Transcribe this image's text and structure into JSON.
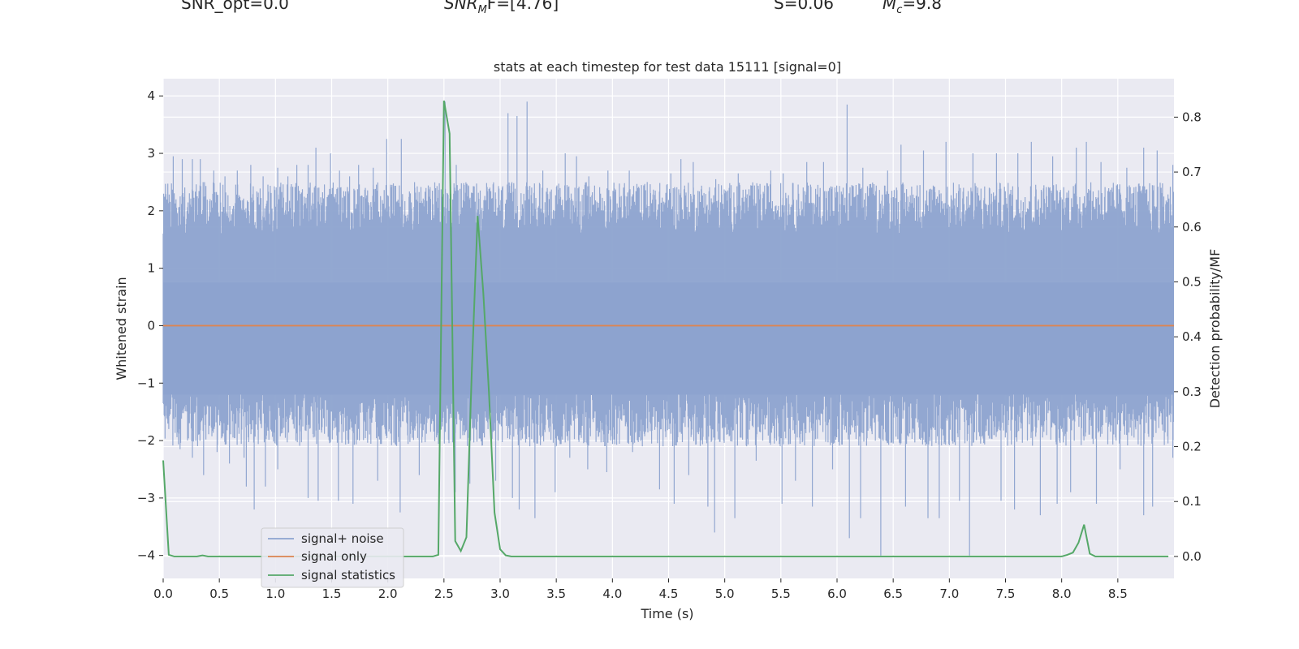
{
  "header": {
    "snr_opt": "SNR_opt=0.0",
    "snr_mf_base": "SNR",
    "snr_mf_sub": "M",
    "snr_mf_rest": "F=[4.76]",
    "s_stat": "S=0.06",
    "mc_base": "M",
    "mc_sub": "c",
    "mc_rest": "=9.8"
  },
  "chart_data": {
    "type": "line",
    "title": "stats at each timestep for test data 15111 [signal=0]",
    "xlabel": "Time (s)",
    "ylabel": "Whitened strain",
    "ylabel_right": "Detection probability/MF",
    "xlim": [
      0,
      9
    ],
    "ylim": [
      -4.4,
      4.3
    ],
    "ylim_right": [
      -0.04,
      0.87
    ],
    "xticks": [
      0.0,
      0.5,
      1.0,
      1.5,
      2.0,
      2.5,
      3.0,
      3.5,
      4.0,
      4.5,
      5.0,
      5.5,
      6.0,
      6.5,
      7.0,
      7.5,
      8.0,
      8.5
    ],
    "xtick_labels": [
      "0.0",
      "0.5",
      "1.0",
      "1.5",
      "2.0",
      "2.5",
      "3.0",
      "3.5",
      "4.0",
      "4.5",
      "5.0",
      "5.5",
      "6.0",
      "6.5",
      "7.0",
      "7.5",
      "8.0",
      "8.5"
    ],
    "yticks": [
      4,
      3,
      2,
      1,
      0,
      -1,
      -2,
      -3,
      -4
    ],
    "ytick_labels": [
      "4",
      "3",
      "2",
      "1",
      "0",
      "−1",
      "−2",
      "−3",
      "−4"
    ],
    "yticks_right": [
      0.8,
      0.7,
      0.6,
      0.5,
      0.4,
      0.3,
      0.2,
      0.1,
      0.0
    ],
    "ytick_labels_right": [
      "0.8",
      "0.7",
      "0.6",
      "0.5",
      "0.4",
      "0.3",
      "0.2",
      "0.1",
      "0.0"
    ],
    "grid": true,
    "legend_position": "lower-left",
    "colors": {
      "noise": "#8da3cf",
      "signal_only": "#dd8452",
      "statistics": "#55a868",
      "plot_bg": "#eaeaf2",
      "grid": "#ffffff",
      "text": "#262626"
    },
    "series": [
      {
        "name": "signal+ noise",
        "axis": "left",
        "style": "dense noise",
        "envelope_peaks_upper": [
          [
            0.09,
            2.95
          ],
          [
            0.17,
            2.9
          ],
          [
            0.26,
            2.9
          ],
          [
            0.33,
            2.9
          ],
          [
            0.45,
            2.7
          ],
          [
            0.55,
            2.6
          ],
          [
            0.66,
            2.7
          ],
          [
            0.78,
            2.8
          ],
          [
            0.89,
            2.6
          ],
          [
            1.02,
            2.75
          ],
          [
            1.11,
            2.6
          ],
          [
            1.19,
            2.8
          ],
          [
            1.29,
            2.8
          ],
          [
            1.36,
            3.1
          ],
          [
            1.49,
            3.0
          ],
          [
            1.57,
            2.7
          ],
          [
            1.66,
            2.6
          ],
          [
            1.74,
            2.8
          ],
          [
            1.87,
            2.75
          ],
          [
            1.99,
            3.25
          ],
          [
            2.12,
            3.25
          ],
          [
            2.24,
            2.4
          ],
          [
            2.51,
            3.9
          ],
          [
            2.61,
            2.8
          ],
          [
            3.07,
            3.7
          ],
          [
            3.15,
            3.65
          ],
          [
            3.24,
            3.9
          ],
          [
            3.38,
            2.7
          ],
          [
            3.58,
            3.0
          ],
          [
            3.68,
            2.95
          ],
          [
            3.79,
            2.6
          ],
          [
            3.96,
            2.7
          ],
          [
            4.15,
            2.7
          ],
          [
            4.31,
            2.5
          ],
          [
            4.52,
            2.65
          ],
          [
            4.61,
            2.9
          ],
          [
            4.72,
            2.85
          ],
          [
            4.92,
            2.55
          ],
          [
            5.12,
            2.65
          ],
          [
            5.41,
            2.7
          ],
          [
            5.52,
            2.65
          ],
          [
            5.73,
            2.85
          ],
          [
            5.88,
            2.85
          ],
          [
            6.09,
            3.85
          ],
          [
            6.23,
            2.75
          ],
          [
            6.45,
            2.7
          ],
          [
            6.57,
            3.15
          ],
          [
            6.77,
            3.05
          ],
          [
            6.97,
            3.2
          ],
          [
            7.21,
            3.0
          ],
          [
            7.42,
            3.0
          ],
          [
            7.61,
            3.0
          ],
          [
            7.73,
            3.2
          ],
          [
            7.92,
            2.95
          ],
          [
            8.13,
            3.1
          ],
          [
            8.22,
            3.2
          ],
          [
            8.35,
            2.85
          ],
          [
            8.58,
            2.75
          ],
          [
            8.73,
            3.1
          ],
          [
            8.85,
            3.05
          ],
          [
            8.99,
            2.8
          ]
        ],
        "envelope_peaks_lower": [
          [
            0.05,
            -1.8
          ],
          [
            0.15,
            -2.15
          ],
          [
            0.26,
            -2.3
          ],
          [
            0.36,
            -2.6
          ],
          [
            0.48,
            -2.2
          ],
          [
            0.59,
            -2.4
          ],
          [
            0.72,
            -2.3
          ],
          [
            0.74,
            -2.8
          ],
          [
            0.81,
            -3.2
          ],
          [
            0.91,
            -2.8
          ],
          [
            1.02,
            -2.5
          ],
          [
            1.29,
            -3.0
          ],
          [
            1.38,
            -3.05
          ],
          [
            1.56,
            -3.05
          ],
          [
            1.69,
            -3.1
          ],
          [
            1.91,
            -2.7
          ],
          [
            2.11,
            -3.25
          ],
          [
            2.28,
            -2.6
          ],
          [
            2.6,
            -2.9
          ],
          [
            2.73,
            -2.75
          ],
          [
            2.96,
            -2.7
          ],
          [
            3.11,
            -3.0
          ],
          [
            3.17,
            -3.2
          ],
          [
            3.31,
            -3.35
          ],
          [
            3.49,
            -2.9
          ],
          [
            3.62,
            -2.3
          ],
          [
            3.78,
            -2.5
          ],
          [
            3.95,
            -2.55
          ],
          [
            4.18,
            -2.2
          ],
          [
            4.42,
            -2.85
          ],
          [
            4.55,
            -3.1
          ],
          [
            4.68,
            -2.6
          ],
          [
            4.85,
            -3.15
          ],
          [
            4.91,
            -3.6
          ],
          [
            5.09,
            -3.35
          ],
          [
            5.28,
            -2.35
          ],
          [
            5.51,
            -3.1
          ],
          [
            5.63,
            -2.7
          ],
          [
            5.78,
            -3.15
          ],
          [
            5.96,
            -2.5
          ],
          [
            6.11,
            -3.7
          ],
          [
            6.21,
            -3.35
          ],
          [
            6.39,
            -4.0
          ],
          [
            6.61,
            -3.15
          ],
          [
            6.81,
            -3.35
          ],
          [
            6.91,
            -3.35
          ],
          [
            7.09,
            -3.05
          ],
          [
            7.18,
            -4.0
          ],
          [
            7.46,
            -3.05
          ],
          [
            7.58,
            -3.2
          ],
          [
            7.81,
            -3.3
          ],
          [
            7.96,
            -3.1
          ],
          [
            8.08,
            -2.9
          ],
          [
            8.31,
            -3.1
          ],
          [
            8.52,
            -2.5
          ],
          [
            8.73,
            -3.3
          ],
          [
            8.81,
            -3.15
          ],
          [
            8.99,
            -2.3
          ]
        ]
      },
      {
        "name": "signal only",
        "axis": "left",
        "x": [
          0,
          9
        ],
        "y": [
          0,
          0
        ]
      },
      {
        "name": "signal statistics",
        "axis": "right",
        "x": [
          0.0,
          0.05,
          0.1,
          0.2,
          0.3,
          0.35,
          0.4,
          0.5,
          1.0,
          1.5,
          2.0,
          2.4,
          2.45,
          2.5,
          2.55,
          2.6,
          2.65,
          2.7,
          2.75,
          2.8,
          2.85,
          2.9,
          2.95,
          3.0,
          3.05,
          3.1,
          4.0,
          5.0,
          6.0,
          7.0,
          8.0,
          8.05,
          8.1,
          8.15,
          8.2,
          8.25,
          8.3,
          8.5,
          8.95
        ],
        "y": [
          0.175,
          0.003,
          0.0,
          0.0,
          0.0,
          0.002,
          0.0,
          0.0,
          0.0,
          0.0,
          0.0,
          0.0,
          0.003,
          0.83,
          0.77,
          0.028,
          0.01,
          0.035,
          0.35,
          0.62,
          0.48,
          0.3,
          0.08,
          0.013,
          0.002,
          0.0,
          0.0,
          0.0,
          0.0,
          0.0,
          0.0,
          0.003,
          0.007,
          0.025,
          0.058,
          0.005,
          0.0,
          0.0,
          0.0
        ]
      }
    ]
  }
}
